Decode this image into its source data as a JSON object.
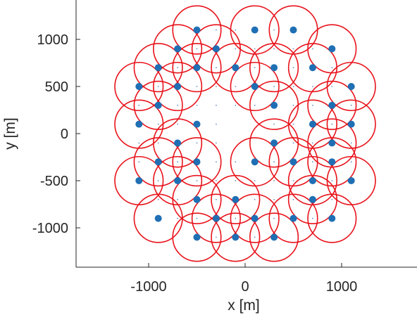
{
  "chart_data": {
    "type": "scatter",
    "title": "",
    "xlabel": "x [m]",
    "ylabel": "y [m]",
    "xlim": [
      -1750,
      1750
    ],
    "ylim": [
      -1400,
      1400
    ],
    "x_ticks": [
      -1000,
      0,
      1000
    ],
    "y_ticks": [
      -1000,
      -500,
      0,
      500,
      1000
    ],
    "x_tick_labels": [
      "-1000",
      "0",
      "1000"
    ],
    "y_tick_labels": [
      "-1000",
      "-500",
      "0",
      "500",
      "1000"
    ],
    "grid": false,
    "legend": "none",
    "colors": {
      "points": "#1f6fb4",
      "circles": "#e8131b",
      "grid_dots": "#2b5ea8",
      "axes": "#262626"
    },
    "circle_radius": 250,
    "points": [
      [
        -500,
        1100
      ],
      [
        100,
        1100
      ],
      [
        500,
        1100
      ],
      [
        -700,
        900
      ],
      [
        -300,
        900
      ],
      [
        900,
        900
      ],
      [
        -900,
        700
      ],
      [
        -500,
        700
      ],
      [
        -100,
        700
      ],
      [
        300,
        700
      ],
      [
        700,
        700
      ],
      [
        -1100,
        500
      ],
      [
        -700,
        500
      ],
      [
        100,
        500
      ],
      [
        1100,
        500
      ],
      [
        -900,
        300
      ],
      [
        300,
        300
      ],
      [
        900,
        300
      ],
      [
        -1100,
        100
      ],
      [
        -500,
        100
      ],
      [
        700,
        100
      ],
      [
        1100,
        100
      ],
      [
        -700,
        -100
      ],
      [
        300,
        -100
      ],
      [
        900,
        -100
      ],
      [
        -900,
        -300
      ],
      [
        -500,
        -300
      ],
      [
        100,
        -300
      ],
      [
        500,
        -300
      ],
      [
        900,
        -300
      ],
      [
        -1100,
        -500
      ],
      [
        -700,
        -500
      ],
      [
        700,
        -500
      ],
      [
        1100,
        -500
      ],
      [
        -500,
        -700
      ],
      [
        -100,
        -700
      ],
      [
        700,
        -700
      ],
      [
        -900,
        -900
      ],
      [
        -300,
        -900
      ],
      [
        100,
        -900
      ],
      [
        500,
        -900
      ],
      [
        900,
        -900
      ],
      [
        -500,
        -1100
      ],
      [
        -100,
        -1100
      ],
      [
        300,
        -1100
      ]
    ],
    "circle_centers": [
      [
        -500,
        1100
      ],
      [
        100,
        1100
      ],
      [
        500,
        1100
      ],
      [
        -700,
        900
      ],
      [
        -300,
        900
      ],
      [
        900,
        900
      ],
      [
        -900,
        700
      ],
      [
        -500,
        700
      ],
      [
        -100,
        700
      ],
      [
        300,
        700
      ],
      [
        700,
        700
      ],
      [
        -1100,
        500
      ],
      [
        -700,
        500
      ],
      [
        100,
        500
      ],
      [
        1100,
        500
      ],
      [
        -900,
        300
      ],
      [
        300,
        300
      ],
      [
        900,
        300
      ],
      [
        -1100,
        100
      ],
      [
        700,
        100
      ],
      [
        1100,
        100
      ],
      [
        -700,
        -100
      ],
      [
        300,
        -100
      ],
      [
        900,
        -100
      ],
      [
        -900,
        -300
      ],
      [
        -500,
        -300
      ],
      [
        100,
        -300
      ],
      [
        500,
        -300
      ],
      [
        900,
        -300
      ],
      [
        -1100,
        -500
      ],
      [
        -700,
        -500
      ],
      [
        700,
        -500
      ],
      [
        1100,
        -500
      ],
      [
        -500,
        -700
      ],
      [
        -100,
        -700
      ],
      [
        700,
        -700
      ],
      [
        -900,
        -900
      ],
      [
        -300,
        -900
      ],
      [
        100,
        -900
      ],
      [
        500,
        -900
      ],
      [
        900,
        -900
      ],
      [
        -500,
        -1100
      ],
      [
        -100,
        -1100
      ],
      [
        300,
        -1100
      ]
    ],
    "grid_points": {
      "x_range": [
        -1100,
        1100
      ],
      "y_range": [
        -1100,
        1100
      ],
      "step": 200,
      "max_radius": 1200
    }
  }
}
